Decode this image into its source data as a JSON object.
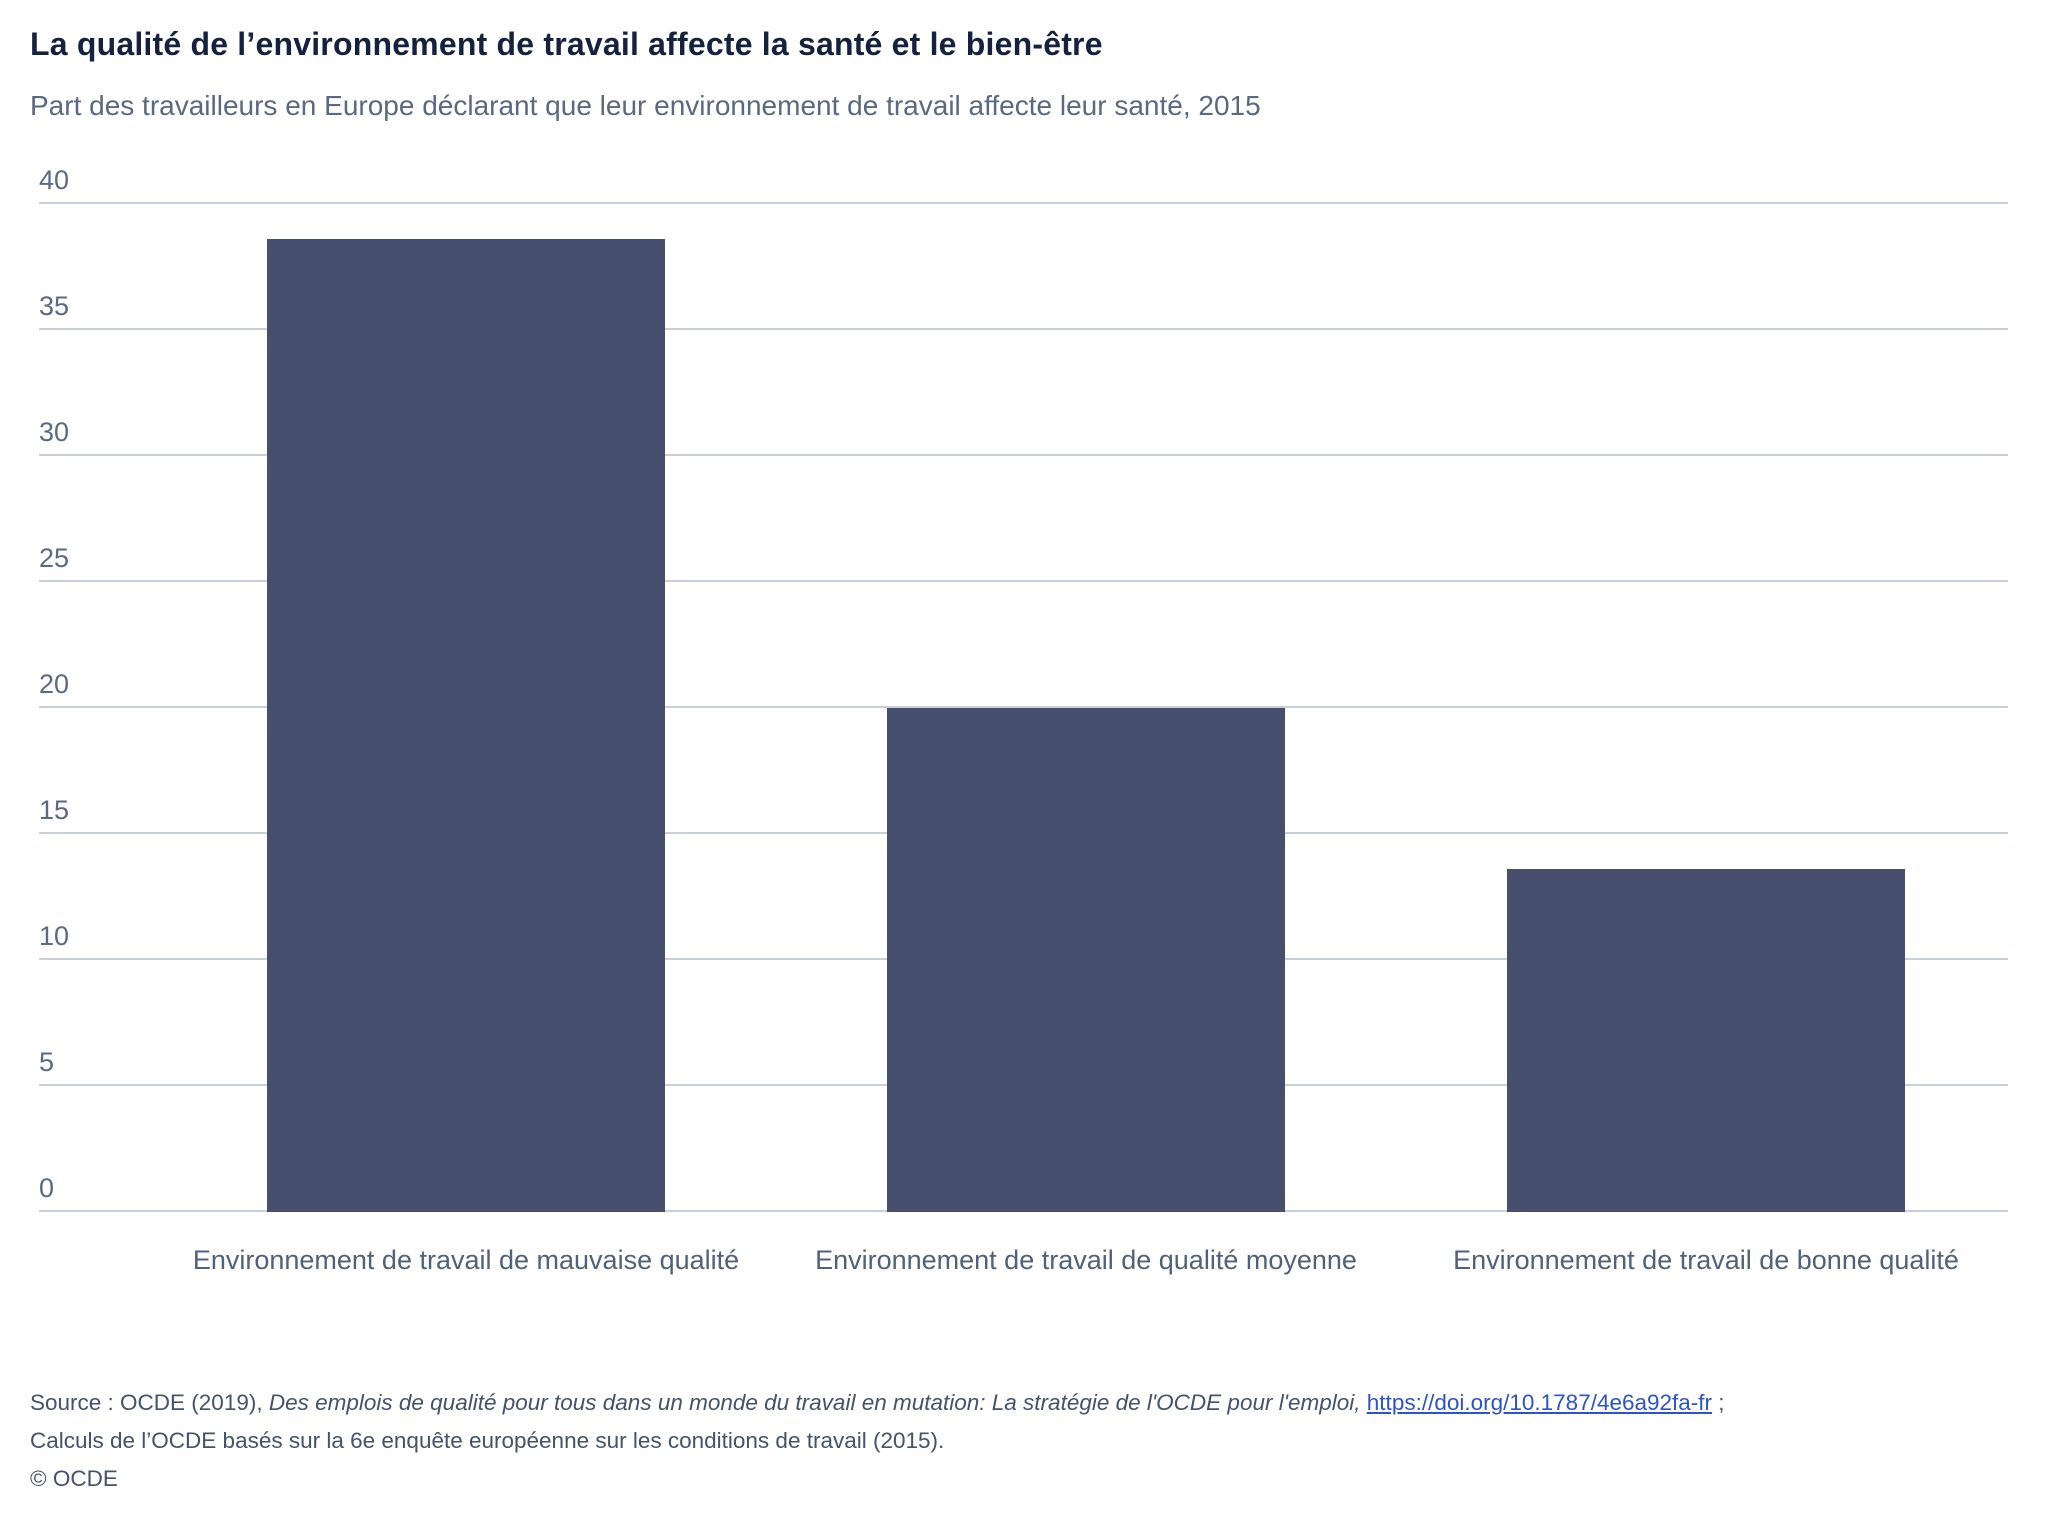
{
  "header": {
    "title": "La qualité de l’environnement de travail affecte la santé et le bien-être",
    "subtitle": "Part des travailleurs en Europe déclarant que leur environnement de travail affecte leur santé, 2015"
  },
  "chart_data": {
    "type": "bar",
    "title": "La qualité de l’environnement de travail affecte la santé et le bien-être",
    "subtitle": "Part des travailleurs en Europe déclarant que leur environnement de travail affecte leur santé, 2015",
    "categories": [
      "Environnement de travail de mauvaise qualité",
      "Environnement de travail de qualité moyenne",
      "Environnement de travail de bonne qualité"
    ],
    "values": [
      38.6,
      20,
      13.6
    ],
    "xlabel": "",
    "ylabel": "",
    "ylim": [
      0,
      40
    ],
    "yticks": [
      0,
      5,
      10,
      15,
      20,
      25,
      30,
      35,
      40
    ],
    "grid": true,
    "legend": false,
    "bar_color": "#46506e"
  },
  "footer": {
    "source_prefix": "Source : OCDE (2019), ",
    "source_italic": "Des emplois de qualité pour tous dans un monde du travail en mutation: La stratégie de l'OCDE pour l'emploi, ",
    "source_link": "https://doi.org/10.1787/4e6a92fa-fr",
    "source_suffix": " ;",
    "source_line2": "Calculs de l’OCDE basés sur la 6e enquête européenne sur les conditions de travail (2015).",
    "copyright": "© OCDE"
  },
  "colors": {
    "bar": "#46506e",
    "grid": "#c7cfdb",
    "link": "#2c53cc"
  }
}
